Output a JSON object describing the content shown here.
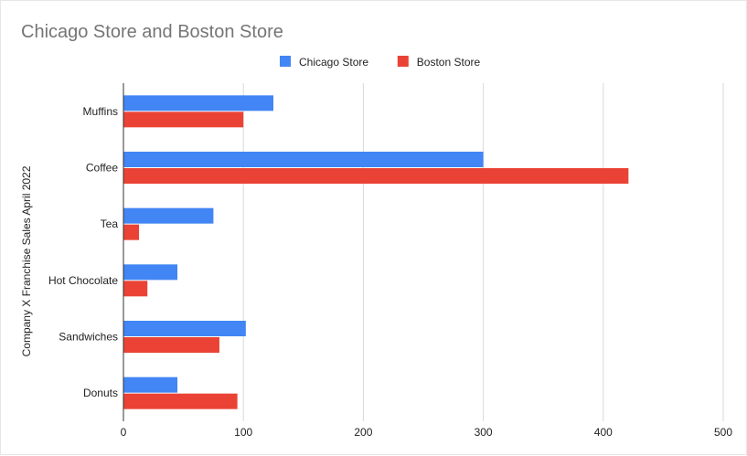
{
  "chart_data": {
    "type": "bar",
    "orientation": "horizontal",
    "title": "Chicago Store and Boston Store",
    "xlabel": "",
    "ylabel": "Company X Franchise Sales April 2022",
    "categories": [
      "Muffins",
      "Coffee",
      "Tea",
      "Hot Chocolate",
      "Sandwiches",
      "Donuts"
    ],
    "series": [
      {
        "name": "Chicago Store",
        "color": "#4285f4",
        "values": [
          125,
          300,
          75,
          45,
          102,
          45
        ]
      },
      {
        "name": "Boston Store",
        "color": "#ea4335",
        "values": [
          100,
          421,
          13,
          20,
          80,
          95
        ]
      }
    ],
    "xlim": [
      0,
      500
    ],
    "xticks": [
      "0",
      "100",
      "200",
      "300",
      "400",
      "500"
    ],
    "grid": true,
    "legend_position": "top-center"
  }
}
